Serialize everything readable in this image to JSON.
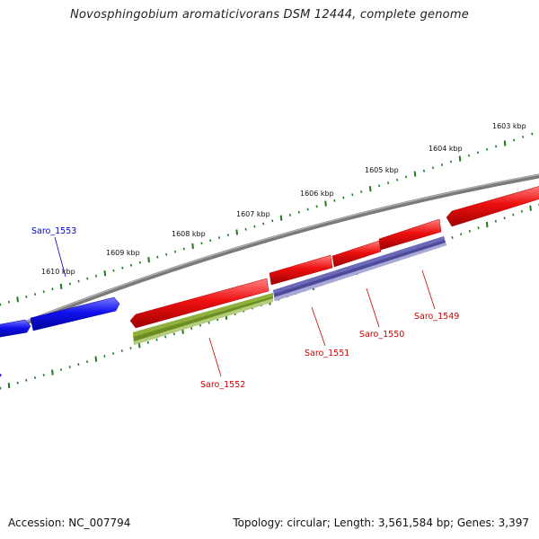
{
  "title": "Novosphingobium aromaticivorans DSM 12444, complete genome",
  "footer": {
    "accession": "Accession: NC_007794",
    "summary": "Topology: circular; Length: 3,561,584 bp; Genes: 3,397"
  },
  "colors": {
    "backbone": "#7a7a7a",
    "ticks": "#1f7a1f",
    "gene_blue": "#1111ee",
    "gene_red": "#ee1111",
    "gene_olive": "#6b8e23",
    "gene_slate": "#4b4b9a",
    "label_blue": "#0000cc",
    "label_red": "#cc0000"
  },
  "kbp_labels": [
    "1603 kbp",
    "1604 kbp",
    "1605 kbp",
    "1606 kbp",
    "1607 kbp",
    "1608 kbp",
    "1609 kbp",
    "1610 kbp"
  ],
  "gene_labels": [
    {
      "text": "Saro_1553",
      "color": "blue"
    },
    {
      "text": "Saro_1552",
      "color": "red"
    },
    {
      "text": "Saro_1551",
      "color": "red"
    },
    {
      "text": "Saro_1550",
      "color": "red"
    },
    {
      "text": "Saro_1549",
      "color": "red"
    }
  ]
}
